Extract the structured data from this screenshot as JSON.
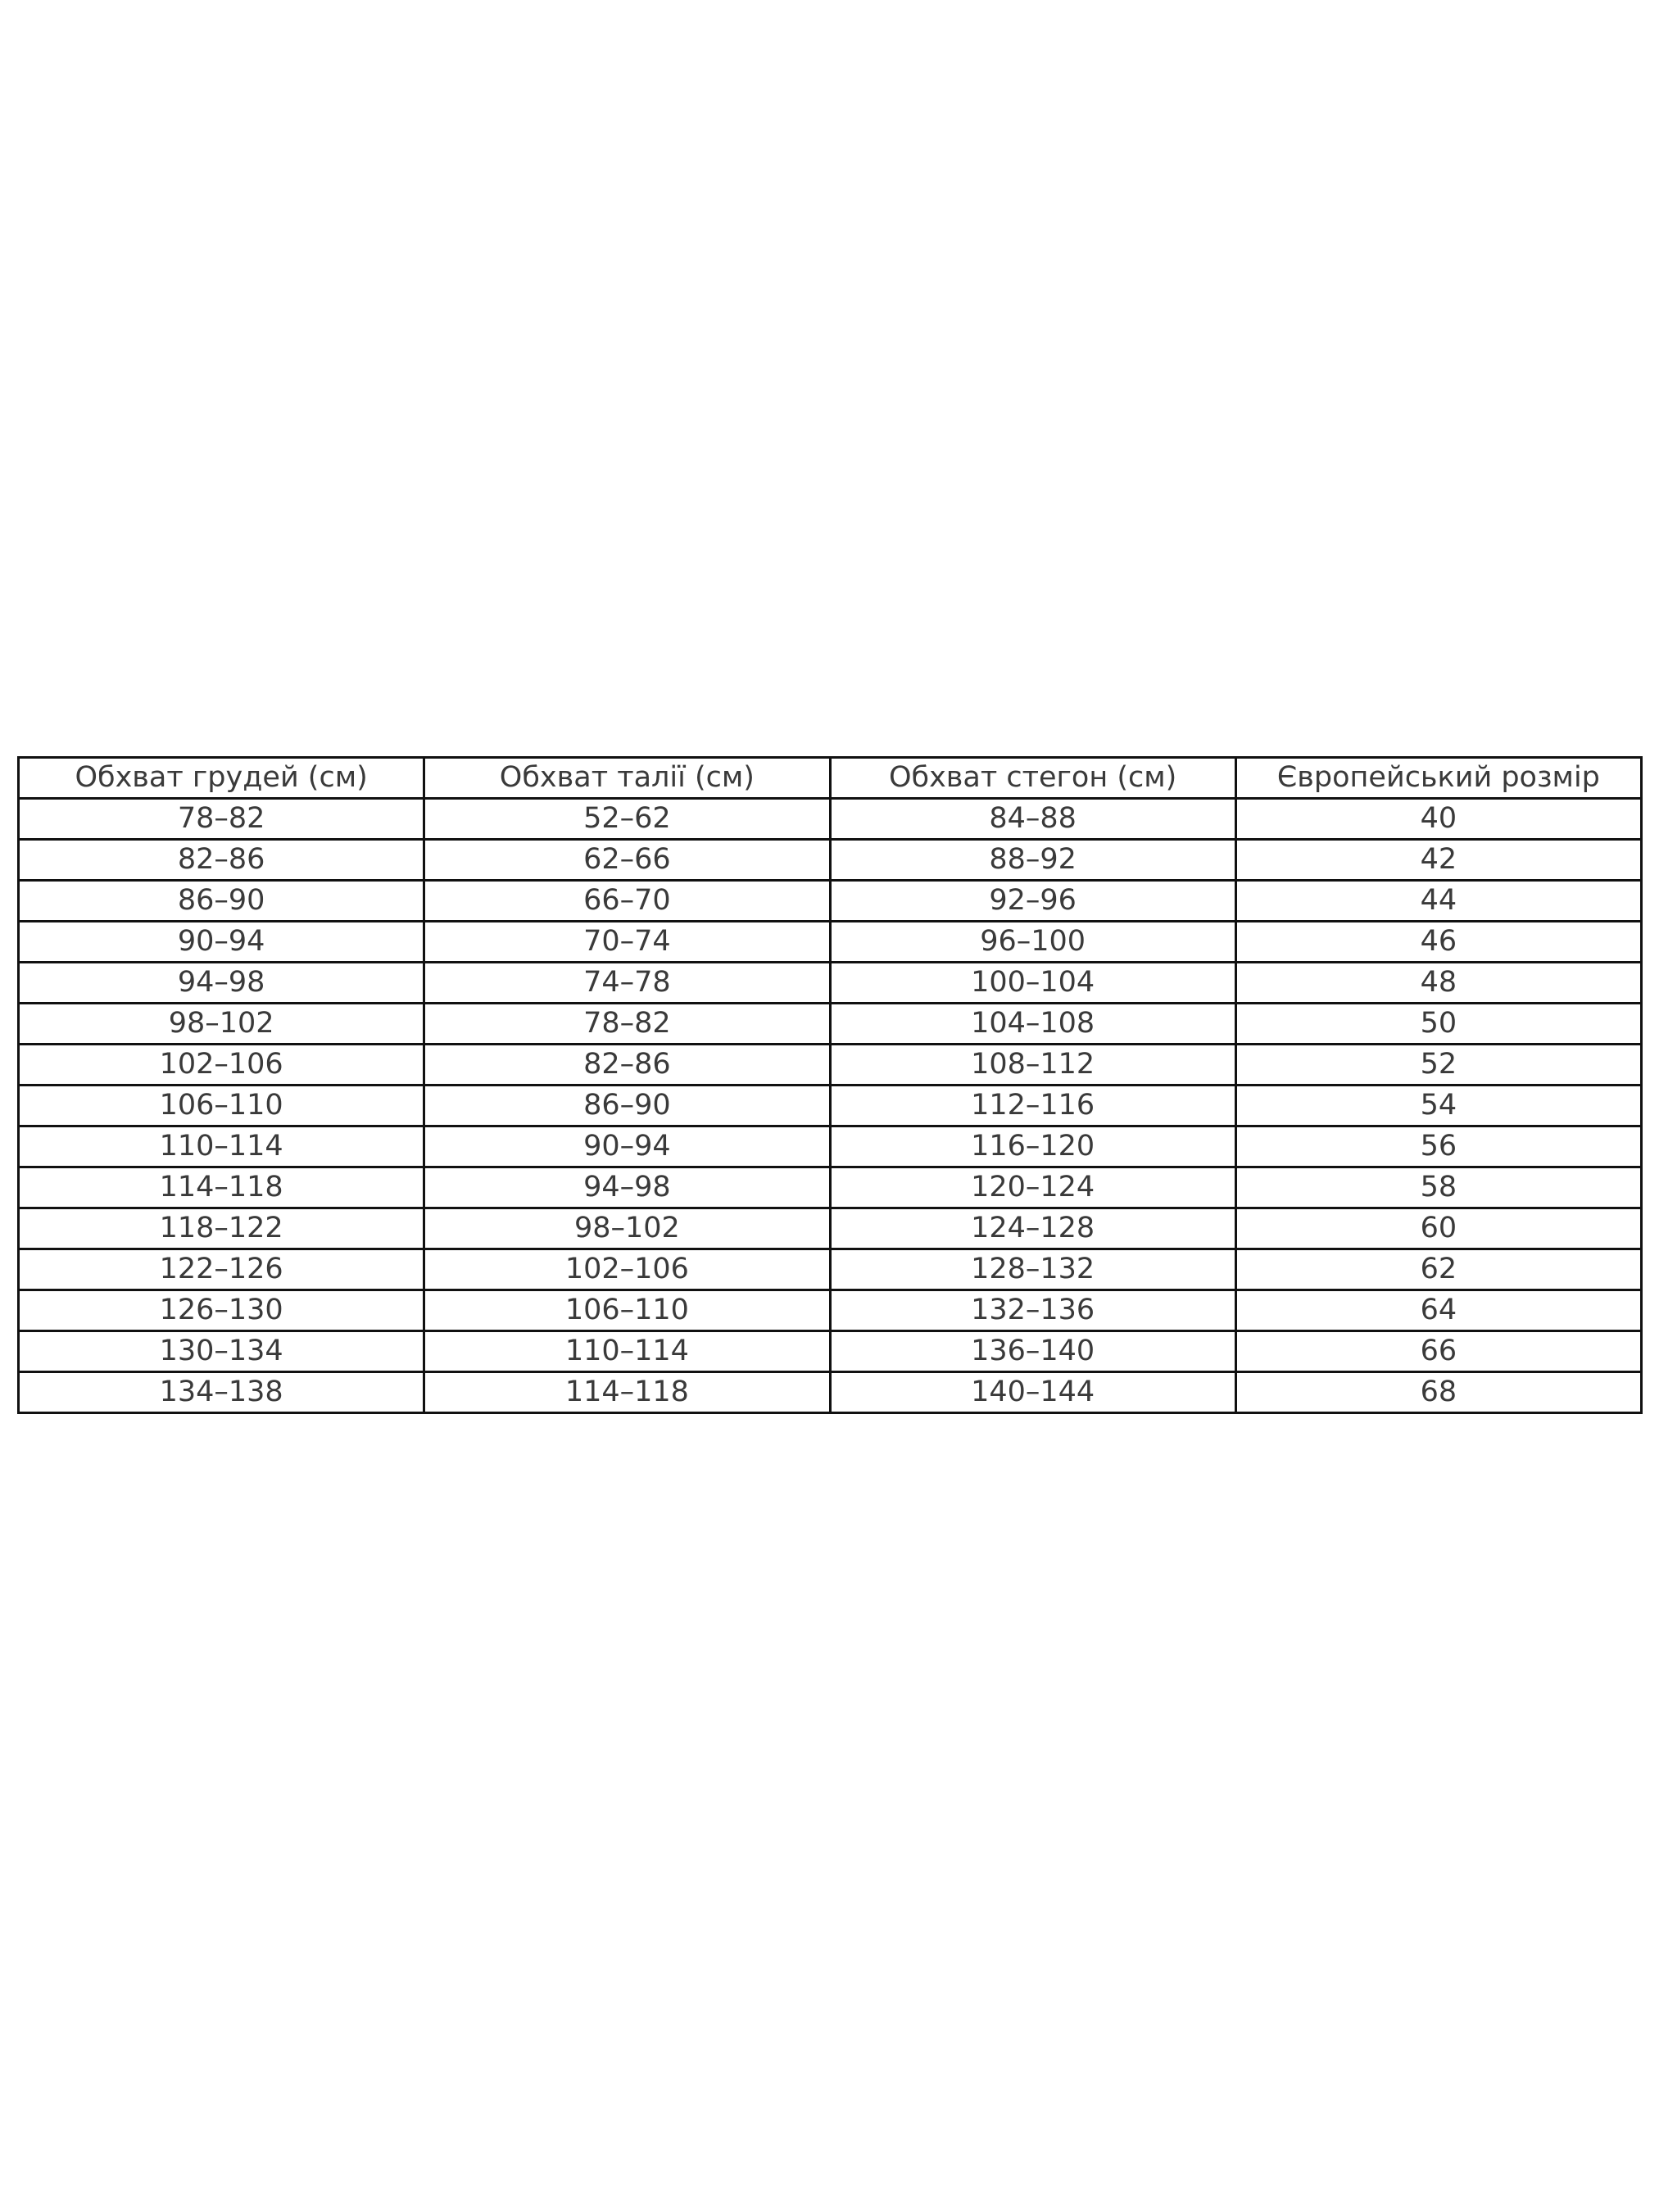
{
  "table": {
    "headers": [
      "Обхват грудей (см)",
      "Обхват талії (см)",
      "Обхват стегон (см)",
      "Європейський розмір"
    ],
    "rows": [
      [
        "78–82",
        "52–62",
        "84–88",
        "40"
      ],
      [
        "82–86",
        "62–66",
        "88–92",
        "42"
      ],
      [
        "86–90",
        "66–70",
        "92–96",
        "44"
      ],
      [
        "90–94",
        "70–74",
        "96–100",
        "46"
      ],
      [
        "94–98",
        "74–78",
        "100–104",
        "48"
      ],
      [
        "98–102",
        "78–82",
        "104–108",
        "50"
      ],
      [
        "102–106",
        "82–86",
        "108–112",
        "52"
      ],
      [
        "106–110",
        "86–90",
        "112–116",
        "54"
      ],
      [
        "110–114",
        "90–94",
        "116–120",
        "56"
      ],
      [
        "114–118",
        "94–98",
        "120–124",
        "58"
      ],
      [
        "118–122",
        "98–102",
        "124–128",
        "60"
      ],
      [
        "122–126",
        "102–106",
        "128–132",
        "62"
      ],
      [
        "126–130",
        "106–110",
        "132–136",
        "64"
      ],
      [
        "130–134",
        "110–114",
        "136–140",
        "66"
      ],
      [
        "134–138",
        "114–118",
        "140–144",
        "68"
      ]
    ]
  }
}
